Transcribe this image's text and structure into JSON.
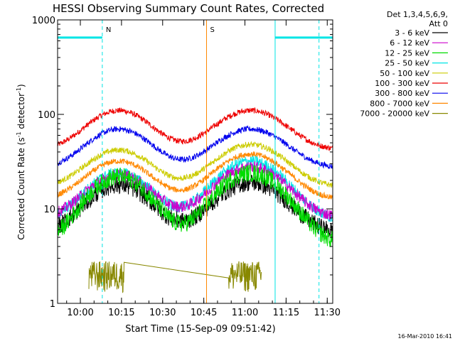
{
  "chart_data": {
    "type": "line",
    "title": "HESSI Observing Summary Count Rates, Corrected",
    "xlabel": "Start Time (15-Sep-09 09:51:42)",
    "ylabel_main": "Corrected Count Rate (s",
    "ylabel_sup1": "-1",
    "ylabel_mid": " detector",
    "ylabel_sup2": "-1",
    "ylabel_end": ")",
    "y_scale": "log",
    "ylim": [
      1,
      1000
    ],
    "xlim": [
      "09:51:42",
      "11:32:00"
    ],
    "x_ticks": [
      "10:00",
      "10:15",
      "10:30",
      "10:45",
      "11:00",
      "11:15",
      "11:30"
    ],
    "y_ticks": [
      "1",
      "10",
      "100",
      "1000"
    ],
    "legend": {
      "placement": "outside-right",
      "header": [
        "Det 1,3,4,5,6,9,",
        "Att 0"
      ],
      "entries": [
        {
          "label": "3 - 6 keV",
          "color": "#000000"
        },
        {
          "label": "6 - 12 keV",
          "color": "#cc00cc"
        },
        {
          "label": "12 - 25 keV",
          "color": "#00dd00"
        },
        {
          "label": "25 - 50 keV",
          "color": "#00e5e5"
        },
        {
          "label": "50 - 100 keV",
          "color": "#cccc00"
        },
        {
          "label": "100 - 300 keV",
          "color": "#ee0000"
        },
        {
          "label": "300 - 800 keV",
          "color": "#0000ee"
        },
        {
          "label": "800 - 7000 keV",
          "color": "#ff8800"
        },
        {
          "label": "7000 - 20000 keV",
          "color": "#888800"
        }
      ]
    },
    "series": [
      {
        "name": "100 - 300 keV",
        "color": "#ee0000",
        "base": 42,
        "peak1": 110,
        "peak2": 110
      },
      {
        "name": "300 - 800 keV",
        "color": "#0000ee",
        "base": 27,
        "peak1": 70,
        "peak2": 70
      },
      {
        "name": "50 - 100 keV",
        "color": "#cccc00",
        "base": 17,
        "peak1": 42,
        "peak2": 48
      },
      {
        "name": "800 - 7000 keV",
        "color": "#ff8800",
        "base": 12.5,
        "peak1": 32,
        "peak2": 38
      },
      {
        "name": "25 - 50 keV",
        "color": "#00e5e5",
        "base": 7.5,
        "peak1": 24,
        "peak2": 32
      },
      {
        "name": "6 - 12 keV",
        "color": "#cc00cc",
        "base": 8,
        "peak1": 23,
        "peak2": 28
      },
      {
        "name": "3 - 6 keV",
        "color": "#000000",
        "base": 5.5,
        "peak1": 18,
        "peak2": 19
      },
      {
        "name": "12 - 25 keV",
        "color": "#00dd00",
        "base": 4.2,
        "peak1": 22,
        "peak2": 24
      },
      {
        "name": "7000 - 20000 keV",
        "color": "#888800",
        "base": 1.8,
        "peak1": 2.8,
        "peak2": 2.8
      }
    ],
    "peak_times": [
      "10:14",
      "11:02"
    ],
    "saa_intervals": [
      {
        "start": "09:51:42",
        "end": "10:08",
        "level": 650,
        "label": "N",
        "color": "#00e5e5"
      },
      {
        "start": "11:11",
        "end": "11:32",
        "level": 650,
        "label": "",
        "color": "#00e5e5"
      }
    ],
    "annotations": [
      {
        "time": "10:08",
        "label": "N",
        "color": "#00e5e5",
        "style": "dashed"
      },
      {
        "time": "11:11",
        "label": "",
        "color": "#00e5e5",
        "style": "solid"
      },
      {
        "time": "11:27",
        "label": "",
        "color": "#00e5e5",
        "style": "dashed"
      },
      {
        "time": "10:46",
        "label": "S",
        "color": "#ff8800",
        "style": "solid"
      }
    ]
  },
  "footer_timestamp": "16-Mar-2010 16:41"
}
